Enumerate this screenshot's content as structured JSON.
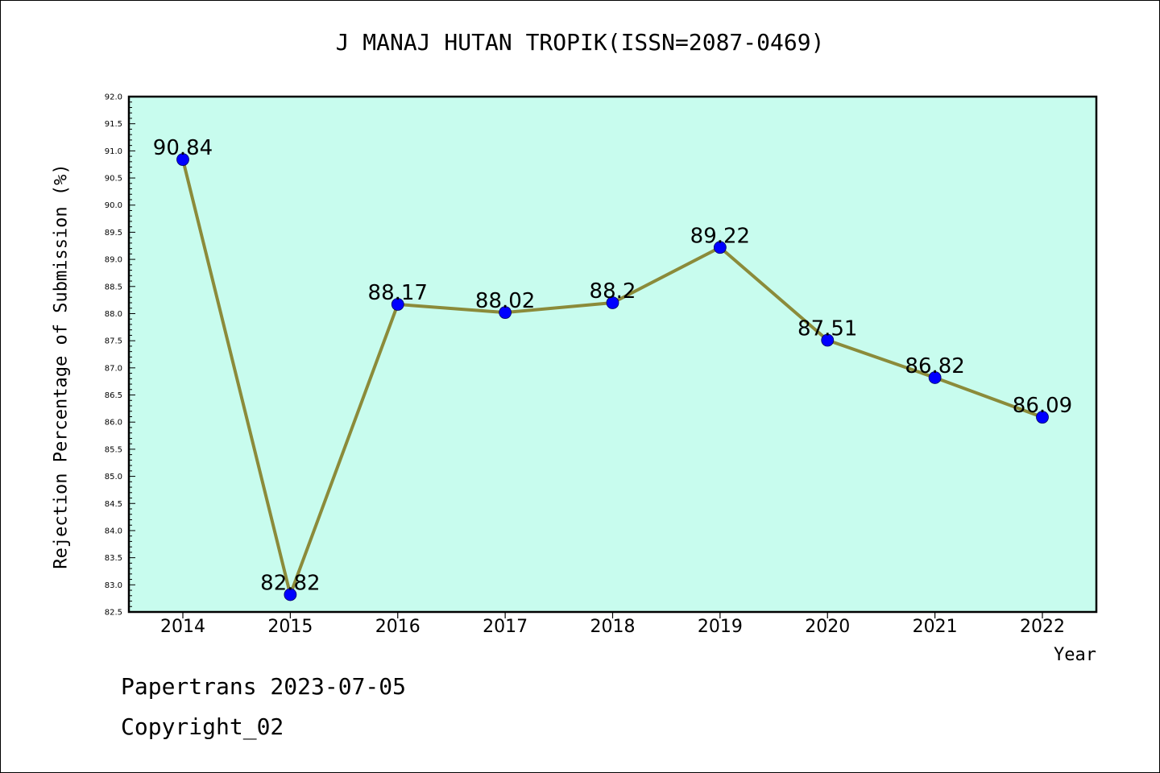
{
  "footer": {
    "line1": "Papertrans 2023-07-05",
    "line2": "Copyright_02"
  },
  "colors": {
    "plot_background": "#c8fcee",
    "line": "#8b8b3a",
    "marker": "#0000ff"
  },
  "chart_data": {
    "type": "line",
    "title": "J MANAJ HUTAN TROPIK(ISSN=2087-0469)",
    "xlabel": "Year",
    "ylabel": "Rejection Percentage of Submission (%)",
    "categories": [
      "2014",
      "2015",
      "2016",
      "2017",
      "2018",
      "2019",
      "2020",
      "2021",
      "2022"
    ],
    "values": [
      90.84,
      82.82,
      88.17,
      88.02,
      88.2,
      89.22,
      87.51,
      86.82,
      86.09
    ],
    "data_labels": [
      "90.84",
      "82.82",
      "88.17",
      "88.02",
      "88.2",
      "89.22",
      "87.51",
      "86.82",
      "86.09"
    ],
    "ylim": [
      82.5,
      92.0
    ],
    "yticks": [
      "82.5",
      "83.0",
      "83.5",
      "84.0",
      "84.5",
      "85.0",
      "85.5",
      "86.0",
      "86.5",
      "87.0",
      "87.5",
      "88.0",
      "88.5",
      "89.0",
      "89.5",
      "90.0",
      "90.5",
      "91.0",
      "91.5",
      "92.0"
    ],
    "grid": false
  }
}
